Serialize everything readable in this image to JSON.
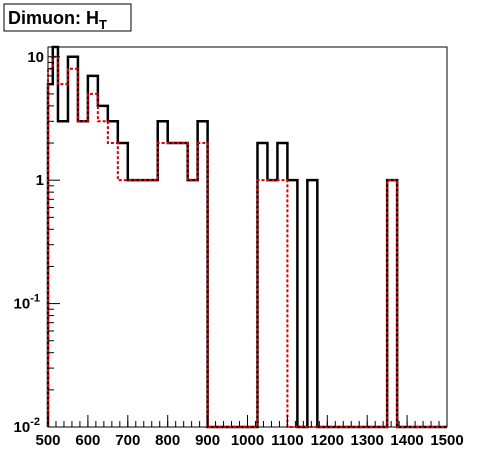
{
  "chart_data": {
    "type": "histogram",
    "title_main": "Dimuon: H",
    "title_sub": "T",
    "xlabel": "",
    "ylabel": "",
    "xlim": [
      500,
      1500
    ],
    "ylim": [
      0.01,
      12
    ],
    "log_y": true,
    "grid": false,
    "bin_width": 25,
    "x_tick_labels": [
      "500",
      "600",
      "700",
      "800",
      "900",
      "1000",
      "1100",
      "1200",
      "1300",
      "1400",
      "1500"
    ],
    "x_tick_values": [
      500,
      600,
      700,
      800,
      900,
      1000,
      1100,
      1200,
      1300,
      1400,
      1500
    ],
    "y_tick_labels": [
      {
        "value": 10,
        "base": "10",
        "exp": ""
      },
      {
        "value": 1,
        "base": "1",
        "exp": ""
      },
      {
        "value": 0.1,
        "base": "10",
        "exp": "-1"
      },
      {
        "value": 0.01,
        "base": "10",
        "exp": "-2"
      }
    ],
    "series": [
      {
        "color": "#000000",
        "style": "solid",
        "bins": [
          [
            500,
            6
          ],
          [
            512,
            12
          ],
          [
            525,
            3
          ],
          [
            550,
            10
          ],
          [
            575,
            3
          ],
          [
            600,
            7
          ],
          [
            625,
            4
          ],
          [
            650,
            3
          ],
          [
            675,
            2
          ],
          [
            700,
            1
          ],
          [
            725,
            1
          ],
          [
            750,
            1
          ],
          [
            775,
            3
          ],
          [
            800,
            2
          ],
          [
            825,
            2
          ],
          [
            850,
            1
          ],
          [
            875,
            3
          ],
          [
            1025,
            2
          ],
          [
            1050,
            1
          ],
          [
            1075,
            2
          ],
          [
            1100,
            1
          ],
          [
            1150,
            1
          ],
          [
            1350,
            1
          ]
        ]
      },
      {
        "color": "#dd0000",
        "style": "dashed",
        "bins": [
          [
            500,
            8
          ],
          [
            512,
            10
          ],
          [
            525,
            6
          ],
          [
            550,
            8
          ],
          [
            575,
            3
          ],
          [
            600,
            5
          ],
          [
            625,
            3
          ],
          [
            650,
            2
          ],
          [
            675,
            1
          ],
          [
            700,
            1
          ],
          [
            725,
            1
          ],
          [
            750,
            1
          ],
          [
            775,
            2
          ],
          [
            800,
            2
          ],
          [
            825,
            2
          ],
          [
            850,
            1
          ],
          [
            875,
            2
          ],
          [
            1025,
            1
          ],
          [
            1050,
            1
          ],
          [
            1075,
            1
          ],
          [
            1350,
            1
          ]
        ]
      }
    ]
  }
}
